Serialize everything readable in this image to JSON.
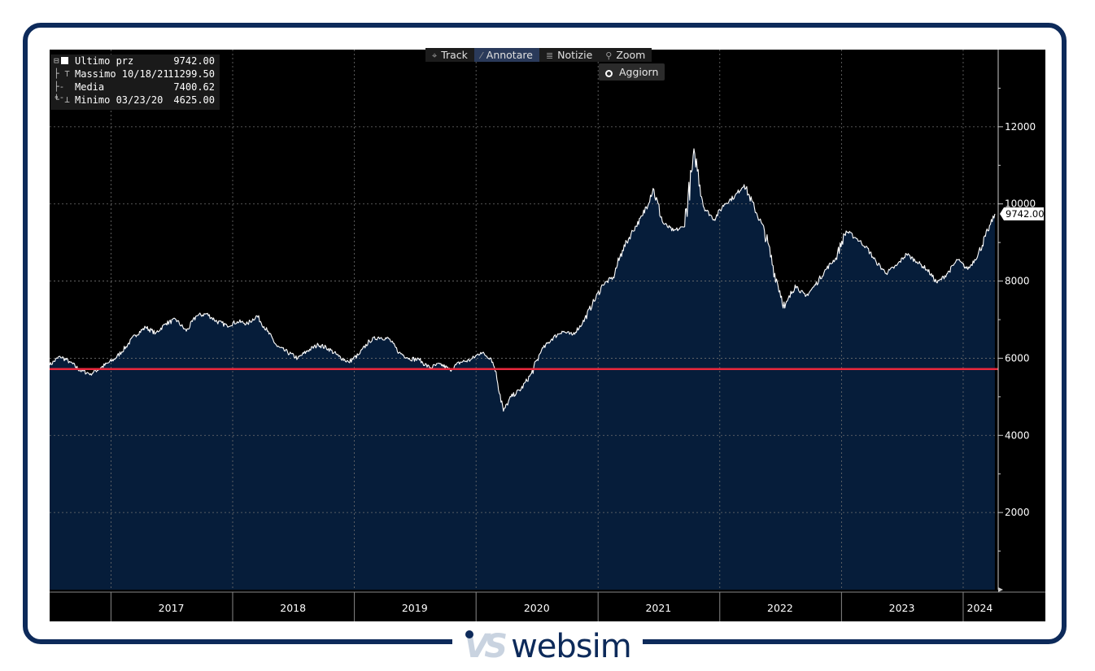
{
  "legend": [
    {
      "label": "Ultimo prz",
      "value": "9742.00",
      "symbol": "square-icon"
    },
    {
      "label": "Massimo 10/18/21",
      "value": "11299.50",
      "symbol": "high-marker-icon"
    },
    {
      "label": "Media",
      "value": "7400.62",
      "symbol": "average-marker-icon"
    },
    {
      "label": "Minimo 03/23/20",
      "value": "4625.00",
      "symbol": "low-marker-icon"
    }
  ],
  "toolbar": [
    {
      "label": "Track",
      "icon": "crosshair-icon",
      "active": false
    },
    {
      "label": "Annotare",
      "icon": "pencil-icon",
      "active": true
    },
    {
      "label": "Notizie",
      "icon": "news-icon",
      "active": false
    },
    {
      "label": "Zoom",
      "icon": "magnifier-icon",
      "active": false
    }
  ],
  "refresh_button": "Aggiorn",
  "last_price_tag": "9742.00",
  "logo_text": "websim",
  "logo_mark": "VS",
  "colors": {
    "area_fill": "#061d3a",
    "line": "#ffffff",
    "reference_line": "#e8283c",
    "background": "#000000",
    "frame": "#0d2a5a"
  },
  "chart_data": {
    "type": "area",
    "title": "",
    "xlabel": "",
    "ylabel": "",
    "ylim": [
      0,
      14000
    ],
    "yticks": [
      2000,
      4000,
      6000,
      8000,
      10000,
      12000
    ],
    "ytick_labels": [
      "2000",
      "4000",
      "6000",
      "8000",
      "10000",
      "12000"
    ],
    "xlim": [
      "2016-07-01",
      "2024-04-15"
    ],
    "year_labels": [
      "2017",
      "2018",
      "2019",
      "2020",
      "2021",
      "2022",
      "2023",
      "2024"
    ],
    "grid": true,
    "reference_line": 5720,
    "last_value": 9742.0,
    "high": {
      "date": "2021-10-18",
      "value": 11299.5
    },
    "low": {
      "date": "2020-03-23",
      "value": 4625.0
    },
    "average": 7400.62,
    "series": [
      {
        "name": "Ultimo prz",
        "points": [
          [
            "2016-07-01",
            5820
          ],
          [
            "2016-08-01",
            6050
          ],
          [
            "2016-09-01",
            5900
          ],
          [
            "2016-10-01",
            5680
          ],
          [
            "2016-11-01",
            5600
          ],
          [
            "2016-12-01",
            5750
          ],
          [
            "2017-01-15",
            6000
          ],
          [
            "2017-02-15",
            6300
          ],
          [
            "2017-03-15",
            6600
          ],
          [
            "2017-04-15",
            6800
          ],
          [
            "2017-05-15",
            6650
          ],
          [
            "2017-06-15",
            6900
          ],
          [
            "2017-07-15",
            7000
          ],
          [
            "2017-08-15",
            6700
          ],
          [
            "2017-09-15",
            7100
          ],
          [
            "2017-10-15",
            7150
          ],
          [
            "2017-11-15",
            6950
          ],
          [
            "2017-12-15",
            6850
          ],
          [
            "2018-01-15",
            6950
          ],
          [
            "2018-02-15",
            6900
          ],
          [
            "2018-03-15",
            7100
          ],
          [
            "2018-04-15",
            6700
          ],
          [
            "2018-05-15",
            6300
          ],
          [
            "2018-06-15",
            6150
          ],
          [
            "2018-07-15",
            6000
          ],
          [
            "2018-08-15",
            6200
          ],
          [
            "2018-09-15",
            6350
          ],
          [
            "2018-10-15",
            6250
          ],
          [
            "2018-11-15",
            6050
          ],
          [
            "2018-12-15",
            5900
          ],
          [
            "2019-01-15",
            6100
          ],
          [
            "2019-02-15",
            6450
          ],
          [
            "2019-03-15",
            6550
          ],
          [
            "2019-04-15",
            6500
          ],
          [
            "2019-05-15",
            6150
          ],
          [
            "2019-06-15",
            6000
          ],
          [
            "2019-07-15",
            5950
          ],
          [
            "2019-08-15",
            5750
          ],
          [
            "2019-09-15",
            5850
          ],
          [
            "2019-10-15",
            5700
          ],
          [
            "2019-11-15",
            5900
          ],
          [
            "2019-12-15",
            5950
          ],
          [
            "2020-01-15",
            6150
          ],
          [
            "2020-02-15",
            6000
          ],
          [
            "2020-03-01",
            5650
          ],
          [
            "2020-03-23",
            4625
          ],
          [
            "2020-04-15",
            5000
          ],
          [
            "2020-05-15",
            5200
          ],
          [
            "2020-06-15",
            5600
          ],
          [
            "2020-07-15",
            6200
          ],
          [
            "2020-08-15",
            6500
          ],
          [
            "2020-09-15",
            6700
          ],
          [
            "2020-10-15",
            6600
          ],
          [
            "2020-11-15",
            6900
          ],
          [
            "2020-12-15",
            7400
          ],
          [
            "2021-01-15",
            7900
          ],
          [
            "2021-02-15",
            8100
          ],
          [
            "2021-03-15",
            8800
          ],
          [
            "2021-04-15",
            9300
          ],
          [
            "2021-05-15",
            9700
          ],
          [
            "2021-06-15",
            10400
          ],
          [
            "2021-07-15",
            9500
          ],
          [
            "2021-08-15",
            9300
          ],
          [
            "2021-09-15",
            9400
          ],
          [
            "2021-10-18",
            11299.5
          ],
          [
            "2021-11-15",
            9900
          ],
          [
            "2021-12-15",
            9600
          ],
          [
            "2022-01-15",
            10000
          ],
          [
            "2022-02-15",
            10200
          ],
          [
            "2022-03-15",
            10500
          ],
          [
            "2022-04-15",
            9900
          ],
          [
            "2022-05-15",
            9300
          ],
          [
            "2022-06-15",
            8200
          ],
          [
            "2022-07-15",
            7300
          ],
          [
            "2022-08-15",
            7900
          ],
          [
            "2022-09-15",
            7600
          ],
          [
            "2022-10-15",
            7900
          ],
          [
            "2022-11-15",
            8300
          ],
          [
            "2022-12-15",
            8600
          ],
          [
            "2023-01-15",
            9300
          ],
          [
            "2023-02-15",
            9100
          ],
          [
            "2023-03-15",
            8900
          ],
          [
            "2023-04-15",
            8500
          ],
          [
            "2023-05-15",
            8200
          ],
          [
            "2023-06-15",
            8400
          ],
          [
            "2023-07-15",
            8700
          ],
          [
            "2023-08-15",
            8500
          ],
          [
            "2023-09-15",
            8300
          ],
          [
            "2023-10-15",
            7950
          ],
          [
            "2023-11-15",
            8200
          ],
          [
            "2023-12-15",
            8550
          ],
          [
            "2024-01-15",
            8300
          ],
          [
            "2024-02-15",
            8700
          ],
          [
            "2024-03-15",
            9300
          ],
          [
            "2024-04-05",
            9742
          ]
        ]
      }
    ]
  }
}
